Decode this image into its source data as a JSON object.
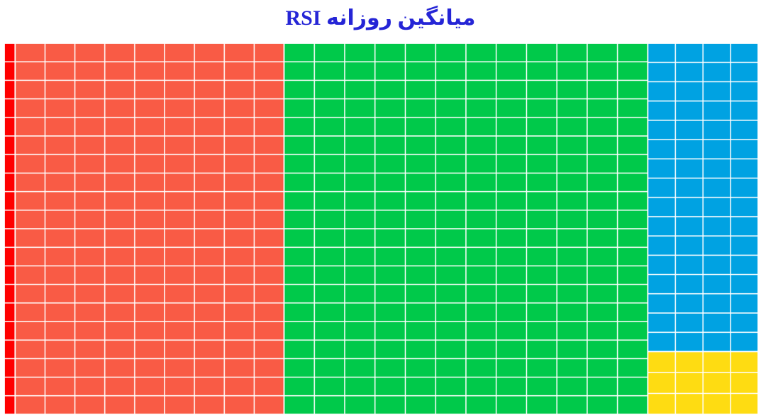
{
  "chart_data": {
    "type": "treemap",
    "title": "میانگین روزانه RSI",
    "series": [
      {
        "color": "#ff0000",
        "values": [
          7
        ]
      },
      {
        "color": "#f95b45",
        "values": [
          173
        ]
      },
      {
        "color": "#00c94a",
        "values": [
          234
        ]
      },
      {
        "color": "#00a2e2",
        "values": [
          59
        ]
      },
      {
        "color": "#fedc12",
        "values": [
          12
        ]
      }
    ]
  }
}
